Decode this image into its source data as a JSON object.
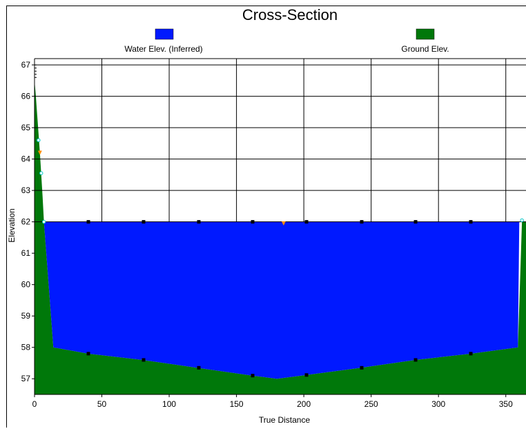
{
  "chart_data": {
    "type": "area",
    "title": "Cross-Section",
    "xlabel": "True Distance",
    "ylabel": "Elevation",
    "xlim": [
      0,
      365
    ],
    "ylim": [
      56.5,
      67.2
    ],
    "x_ticks": [
      "0",
      "50",
      "100",
      "150",
      "200",
      "250",
      "300",
      "350"
    ],
    "y_ticks": [
      "57",
      "58",
      "59",
      "60",
      "61",
      "62",
      "63",
      "64",
      "65",
      "66",
      "67"
    ],
    "grid": true,
    "legend_position": "top",
    "series": [
      {
        "name": "Water Elev. (Inferred)",
        "color": "#0019ff",
        "x": [
          7,
          14,
          40,
          80,
          121,
          162,
          180,
          202,
          242,
          283,
          324,
          359,
          360
        ],
        "y": [
          62.0,
          58.0,
          57.8,
          57.6,
          57.35,
          57.1,
          57.0,
          57.12,
          57.35,
          57.6,
          57.8,
          58.0,
          62.0
        ]
      },
      {
        "name": "Ground Elev.",
        "color": "#00780a",
        "x": [
          0,
          1,
          2,
          3,
          4,
          5,
          6,
          7,
          14,
          40,
          80,
          121,
          162,
          180,
          202,
          242,
          283,
          324,
          359,
          362,
          365
        ],
        "y": [
          66.5,
          66.0,
          65.4,
          64.8,
          64.2,
          63.5,
          62.8,
          62.0,
          58.0,
          57.8,
          57.6,
          57.35,
          57.1,
          57.0,
          57.12,
          57.35,
          57.6,
          57.8,
          58.0,
          62.0,
          62.0
        ]
      }
    ],
    "markers": {
      "black": [
        [
          40,
          62.0
        ],
        [
          81,
          62.0
        ],
        [
          122,
          62.0
        ],
        [
          162,
          62.0
        ],
        [
          202,
          62.0
        ],
        [
          243,
          62.0
        ],
        [
          283,
          62.0
        ],
        [
          324,
          62.0
        ],
        [
          40,
          57.8
        ],
        [
          81,
          57.6
        ],
        [
          122,
          57.35
        ],
        [
          162,
          57.1
        ],
        [
          202,
          57.12
        ],
        [
          243,
          57.35
        ],
        [
          283,
          57.6
        ],
        [
          324,
          57.8
        ]
      ],
      "orange": [
        [
          4,
          64.2
        ],
        [
          185,
          61.95
        ]
      ],
      "cyan": [
        [
          3,
          64.6
        ],
        [
          5,
          63.55
        ],
        [
          7,
          62.0
        ],
        [
          362,
          62.05
        ]
      ]
    }
  }
}
